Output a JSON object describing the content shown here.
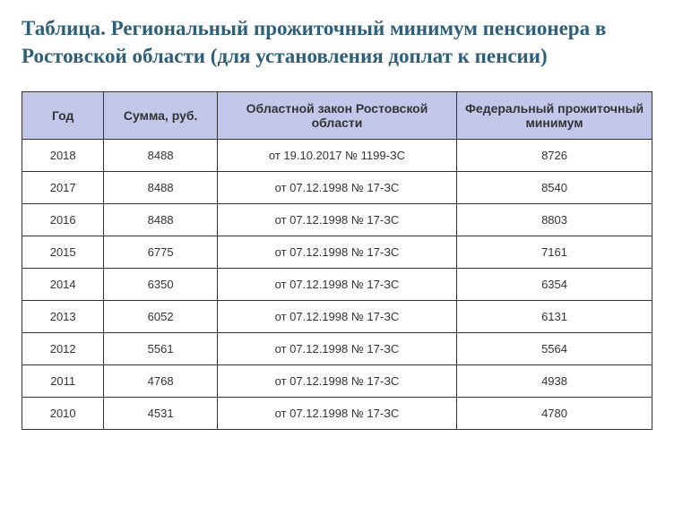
{
  "title": "Таблица. Региональный прожиточный минимум пенсионера в Ростовской области (для установления доплат к пенсии)",
  "columns": {
    "year": "Год",
    "sum": "Сумма, руб.",
    "law": "Областной закон Ростовской области",
    "federal": "Федеральный прожиточный минимум"
  },
  "rows": [
    {
      "year": "2018",
      "sum": "8488",
      "law": "от 19.10.2017 № 1199-ЗС",
      "federal": "8726"
    },
    {
      "year": "2017",
      "sum": "8488",
      "law": "от 07.12.1998 № 17-ЗС",
      "federal": "8540"
    },
    {
      "year": "2016",
      "sum": "8488",
      "law": "от 07.12.1998 № 17-ЗС",
      "federal": "8803"
    },
    {
      "year": "2015",
      "sum": "6775",
      "law": "от 07.12.1998 № 17-ЗС",
      "federal": "7161"
    },
    {
      "year": "2014",
      "sum": "6350",
      "law": "от 07.12.1998 № 17-ЗС",
      "federal": "6354"
    },
    {
      "year": "2013",
      "sum": "6052",
      "law": "от 07.12.1998 № 17-ЗС",
      "federal": "6131"
    },
    {
      "year": "2012",
      "sum": "5561",
      "law": "от 07.12.1998 № 17-ЗС",
      "federal": "5564"
    },
    {
      "year": "2011",
      "sum": "4768",
      "law": "от 07.12.1998 № 17-ЗС",
      "federal": "4938"
    },
    {
      "year": "2010",
      "sum": "4531",
      "law": "от 07.12.1998 № 17-ЗС",
      "federal": "4780"
    }
  ],
  "styling": {
    "title_color": "#2e5f7a",
    "title_fontsize": 23,
    "header_bg": "#c3c8ea",
    "border_color": "#333333",
    "cell_fontsize": 13,
    "header_fontsize": 14,
    "col_widths": {
      "year": "13%",
      "sum": "18%",
      "law": "38%",
      "federal": "31%"
    }
  }
}
